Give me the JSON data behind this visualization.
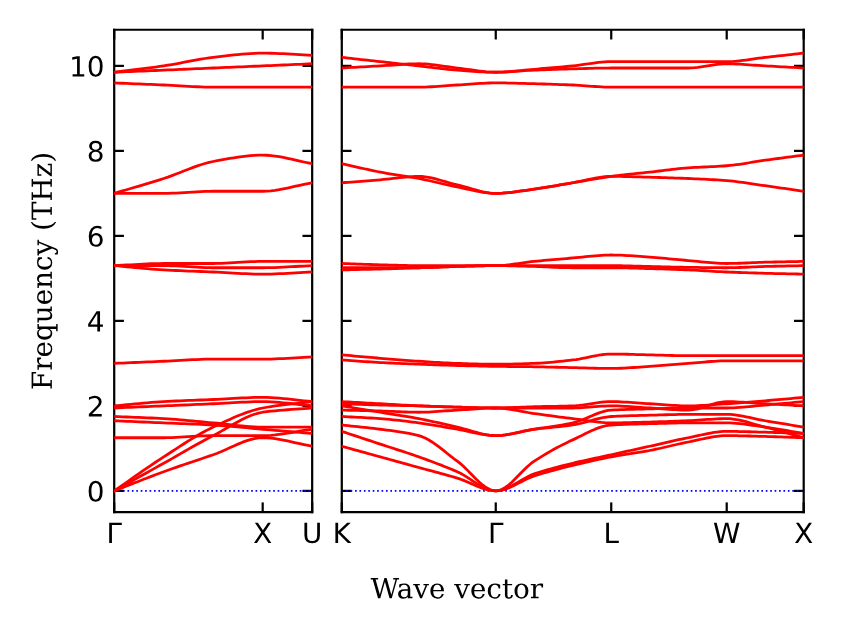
{
  "chart_data": [
    {
      "type": "line",
      "ylabel": "Frequency (THz)",
      "categories": [
        "Γ",
        null,
        null,
        "X",
        "U"
      ],
      "ylim": [
        -0.5,
        10.85
      ],
      "yticks": [
        0,
        2,
        4,
        6,
        8,
        10
      ],
      "line_style": "solid",
      "ref_lines": [
        {
          "axis": "y",
          "value": 0,
          "color": "#0000ff",
          "line_style": "dotted"
        }
      ],
      "series": [
        {
          "color": "#ff0000",
          "values": [
            0,
            0.45,
            0.85,
            1.25,
            1.05
          ]
        },
        {
          "color": "#ff0000",
          "values": [
            0,
            0.65,
            1.3,
            1.85,
            1.95
          ]
        },
        {
          "color": "#ff0000",
          "values": [
            0,
            0.8,
            1.5,
            1.95,
            2.1
          ]
        },
        {
          "color": "#ff0000",
          "values": [
            1.25,
            1.25,
            1.3,
            1.3,
            1.45
          ]
        },
        {
          "color": "#ff0000",
          "values": [
            1.65,
            1.6,
            1.55,
            1.45,
            1.35
          ]
        },
        {
          "color": "#ff0000",
          "values": [
            1.75,
            1.7,
            1.6,
            1.5,
            1.5
          ]
        },
        {
          "color": "#ff0000",
          "values": [
            2.0,
            2.1,
            2.15,
            2.2,
            2.1
          ]
        },
        {
          "color": "#ff0000",
          "values": [
            1.95,
            2.0,
            2.05,
            2.1,
            2.0
          ]
        },
        {
          "color": "#ff0000",
          "values": [
            3.0,
            3.05,
            3.1,
            3.1,
            3.15
          ]
        },
        {
          "color": "#ff0000",
          "values": [
            5.3,
            5.35,
            5.35,
            5.4,
            5.4
          ]
        },
        {
          "color": "#ff0000",
          "values": [
            5.3,
            5.2,
            5.15,
            5.1,
            5.15
          ]
        },
        {
          "color": "#ff0000",
          "values": [
            5.3,
            5.3,
            5.25,
            5.25,
            5.3
          ]
        },
        {
          "color": "#ff0000",
          "values": [
            7.0,
            7.35,
            7.75,
            7.9,
            7.7
          ]
        },
        {
          "color": "#ff0000",
          "values": [
            7.0,
            7.0,
            7.05,
            7.05,
            7.25
          ]
        },
        {
          "color": "#ff0000",
          "values": [
            9.6,
            9.55,
            9.5,
            9.5,
            9.5
          ]
        },
        {
          "color": "#ff0000",
          "values": [
            9.85,
            10.0,
            10.2,
            10.3,
            10.25
          ]
        },
        {
          "color": "#ff0000",
          "values": [
            9.85,
            9.9,
            9.95,
            10.0,
            10.05
          ]
        }
      ]
    },
    {
      "type": "line",
      "xlabel": "Wave vector",
      "categories": [
        "K",
        null,
        null,
        null,
        "Γ",
        null,
        null,
        "L",
        null,
        null,
        "W",
        null,
        "X"
      ],
      "ylim": [
        -0.5,
        10.85
      ],
      "yticks": [
        {
          "value": 0,
          "label": null
        },
        {
          "value": 2,
          "label": null
        },
        {
          "value": 4,
          "label": null
        },
        {
          "value": 6,
          "label": null
        },
        {
          "value": 8,
          "label": null
        },
        {
          "value": 10,
          "label": null
        }
      ],
      "tick_labels": "x",
      "line_style": "solid",
      "ref_lines": [
        {
          "axis": "y",
          "value": 0,
          "color": "#0000ff",
          "line_style": "dotted"
        }
      ],
      "series": [
        {
          "color": "#ff0000",
          "values": [
            1.05,
            0.8,
            0.55,
            0.3,
            0,
            0.35,
            0.6,
            0.8,
            0.95,
            1.15,
            1.3,
            1.28,
            1.25
          ]
        },
        {
          "color": "#ff0000",
          "values": [
            1.4,
            1.1,
            0.8,
            0.45,
            0,
            0.4,
            0.65,
            0.85,
            1.05,
            1.25,
            1.4,
            1.38,
            1.35
          ]
        },
        {
          "color": "#ff0000",
          "values": [
            1.55,
            1.45,
            1.3,
            0.7,
            0,
            0.7,
            1.2,
            1.55,
            1.58,
            1.6,
            1.6,
            1.5,
            1.35
          ]
        },
        {
          "color": "#ff0000",
          "values": [
            1.75,
            1.7,
            1.6,
            1.45,
            1.3,
            1.45,
            1.55,
            1.75,
            1.78,
            1.8,
            1.8,
            1.65,
            1.5
          ]
        },
        {
          "color": "#ff0000",
          "values": [
            2.0,
            1.85,
            1.7,
            1.5,
            1.3,
            1.45,
            1.6,
            1.9,
            1.93,
            1.95,
            1.95,
            2.02,
            2.1
          ]
        },
        {
          "color": "#ff0000",
          "values": [
            2.05,
            2.02,
            2.0,
            1.97,
            1.95,
            1.98,
            2.0,
            2.1,
            2.05,
            2.0,
            2.05,
            2.12,
            2.2
          ]
        },
        {
          "color": "#ff0000",
          "values": [
            2.1,
            2.05,
            2.0,
            1.97,
            1.95,
            1.95,
            1.95,
            2.0,
            1.95,
            1.9,
            2.1,
            2.05,
            2.0
          ]
        },
        {
          "color": "#ff0000",
          "values": [
            1.9,
            1.88,
            1.85,
            1.9,
            1.95,
            1.82,
            1.7,
            1.6,
            1.62,
            1.65,
            1.7,
            1.5,
            1.25
          ]
        },
        {
          "color": "#ff0000",
          "values": [
            3.2,
            3.12,
            3.05,
            3.0,
            2.98,
            3.0,
            3.08,
            3.22,
            3.2,
            3.18,
            3.18,
            3.18,
            3.18
          ]
        },
        {
          "color": "#ff0000",
          "values": [
            3.08,
            3.02,
            2.98,
            2.95,
            2.93,
            2.92,
            2.9,
            2.88,
            2.93,
            3.0,
            3.06,
            3.06,
            3.06
          ]
        },
        {
          "color": "#ff0000",
          "values": [
            5.35,
            5.32,
            5.3,
            5.3,
            5.3,
            5.4,
            5.48,
            5.55,
            5.5,
            5.42,
            5.35,
            5.38,
            5.4
          ]
        },
        {
          "color": "#ff0000",
          "values": [
            5.2,
            5.22,
            5.25,
            5.28,
            5.3,
            5.3,
            5.3,
            5.3,
            5.28,
            5.26,
            5.25,
            5.28,
            5.3
          ]
        },
        {
          "color": "#ff0000",
          "values": [
            5.25,
            5.25,
            5.25,
            5.28,
            5.3,
            5.28,
            5.25,
            5.25,
            5.23,
            5.2,
            5.15,
            5.12,
            5.1
          ]
        },
        {
          "color": "#ff0000",
          "values": [
            7.7,
            7.5,
            7.35,
            7.15,
            7.0,
            7.1,
            7.25,
            7.4,
            7.5,
            7.6,
            7.65,
            7.78,
            7.9
          ]
        },
        {
          "color": "#ff0000",
          "values": [
            7.25,
            7.32,
            7.4,
            7.2,
            7.0,
            7.1,
            7.25,
            7.4,
            7.38,
            7.35,
            7.3,
            7.18,
            7.05
          ]
        },
        {
          "color": "#ff0000",
          "values": [
            9.5,
            9.5,
            9.5,
            9.55,
            9.6,
            9.58,
            9.55,
            9.5,
            9.5,
            9.5,
            9.5,
            9.5,
            9.5
          ]
        },
        {
          "color": "#ff0000",
          "values": [
            10.2,
            10.1,
            10.0,
            9.9,
            9.85,
            9.92,
            10.0,
            10.1,
            10.1,
            10.1,
            10.1,
            10.2,
            10.3
          ]
        },
        {
          "color": "#ff0000",
          "values": [
            9.95,
            10.0,
            10.05,
            9.95,
            9.85,
            9.9,
            9.93,
            9.95,
            9.95,
            9.95,
            10.05,
            10.0,
            9.95
          ]
        }
      ]
    }
  ]
}
